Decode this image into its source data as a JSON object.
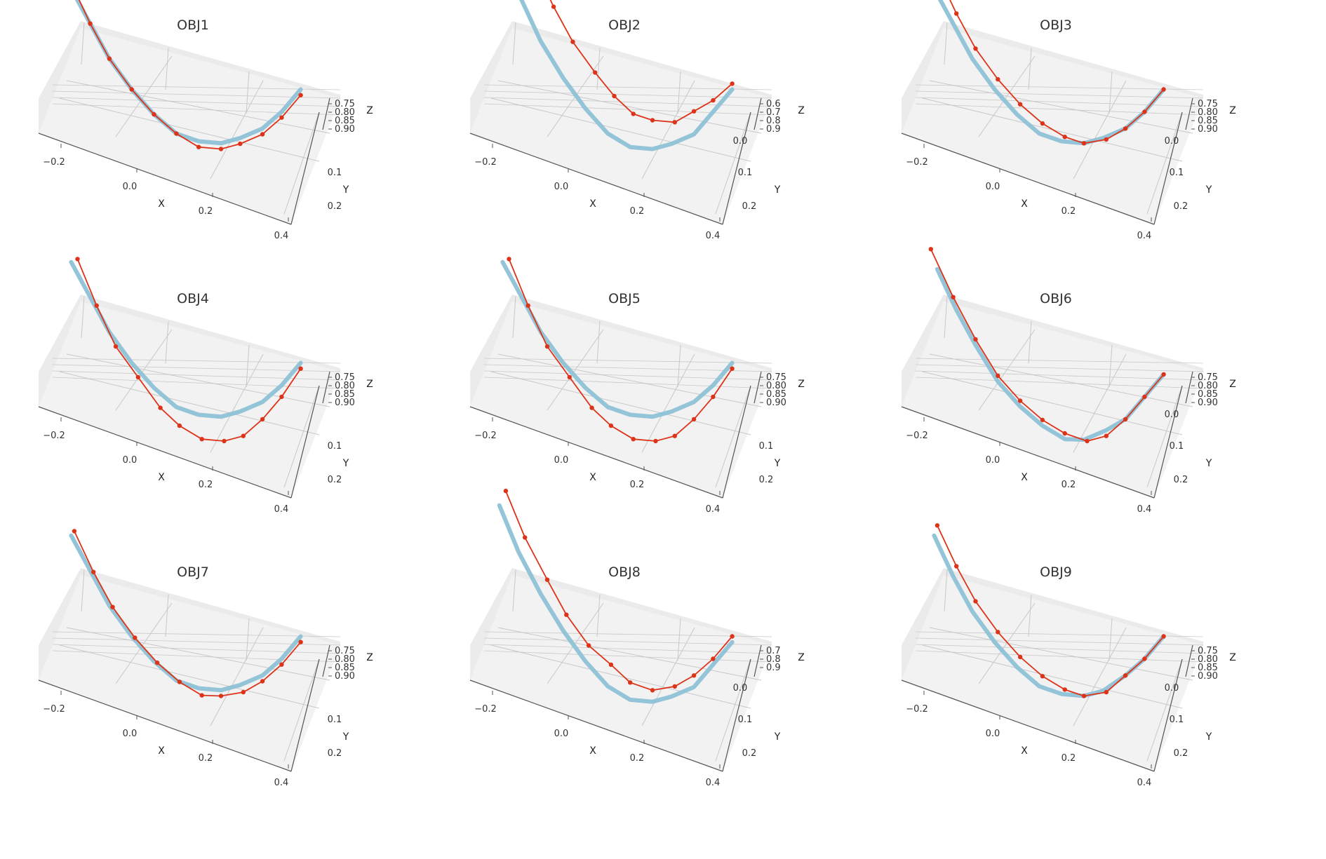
{
  "figure": {
    "colors": {
      "background": "#ffffff",
      "pane_floor": "#f2f2f2",
      "pane_wall": "#ebebeb",
      "grid": "#c8c8c8",
      "axis_line": "#555555",
      "predicted_line": "#8ec1d6",
      "measured_line": "#dd3318"
    },
    "layout": {
      "rows": 3,
      "cols": 3
    }
  },
  "chart_data": [
    {
      "type": "line3d",
      "title": "OBJ1",
      "xlabel": "X",
      "ylabel": "Y",
      "zlabel": "Z",
      "xticks": [
        "−0.2",
        "0.0",
        "0.2",
        "0.4"
      ],
      "yticks": [
        "0.1",
        "0.2"
      ],
      "zticks": [
        "0.75",
        "0.80",
        "0.85",
        "0.90"
      ],
      "view": "elevated-oblique",
      "grid": true,
      "series": [
        {
          "style": "thick-line",
          "color": "#8ec1d6",
          "x": [
            -0.27,
            -0.21,
            -0.15,
            -0.08,
            -0.01,
            0.06,
            0.13,
            0.2,
            0.26,
            0.33,
            0.39,
            0.45
          ],
          "y": [
            0.2,
            0.18,
            0.16,
            0.14,
            0.12,
            0.1,
            0.08,
            0.06,
            0.04,
            0.02,
            0.0,
            -0.02
          ],
          "z": [
            0.73,
            0.78,
            0.83,
            0.87,
            0.9,
            0.92,
            0.92,
            0.91,
            0.89,
            0.86,
            0.82,
            0.77
          ]
        },
        {
          "style": "line-markers",
          "color": "#dd3318",
          "x": [
            -0.27,
            -0.21,
            -0.15,
            -0.08,
            -0.01,
            0.06,
            0.13,
            0.2,
            0.26,
            0.33,
            0.39,
            0.45
          ],
          "y": [
            0.2,
            0.18,
            0.16,
            0.14,
            0.12,
            0.1,
            0.08,
            0.06,
            0.04,
            0.02,
            0.0,
            -0.02
          ],
          "z": [
            0.72,
            0.78,
            0.83,
            0.87,
            0.9,
            0.92,
            0.93,
            0.92,
            0.9,
            0.87,
            0.83,
            0.78
          ]
        }
      ]
    },
    {
      "type": "line3d",
      "title": "OBJ2",
      "xlabel": "X",
      "ylabel": "Y",
      "zlabel": "Z",
      "xticks": [
        "−0.2",
        "0.0",
        "0.2",
        "0.4"
      ],
      "yticks": [
        "0.0",
        "0.1",
        "0.2"
      ],
      "zticks": [
        "0.6",
        "0.7",
        "0.8",
        "0.9"
      ],
      "view": "elevated-oblique",
      "grid": true,
      "series": [
        {
          "style": "thick-line",
          "color": "#8ec1d6",
          "x": [
            -0.28,
            -0.22,
            -0.15,
            -0.08,
            -0.01,
            0.06,
            0.13,
            0.2,
            0.26,
            0.33,
            0.39,
            0.45
          ],
          "y": [
            0.2,
            0.18,
            0.16,
            0.14,
            0.12,
            0.1,
            0.08,
            0.06,
            0.04,
            0.02,
            0.0,
            -0.02
          ],
          "z": [
            0.66,
            0.73,
            0.8,
            0.85,
            0.89,
            0.92,
            0.93,
            0.92,
            0.9,
            0.87,
            0.82,
            0.77
          ]
        },
        {
          "style": "line-markers",
          "color": "#dd3318",
          "x": [
            -0.23,
            -0.17,
            -0.11,
            -0.05,
            0.02,
            0.08,
            0.14,
            0.2,
            0.27,
            0.33,
            0.39,
            0.45
          ],
          "y": [
            0.2,
            0.18,
            0.16,
            0.14,
            0.12,
            0.1,
            0.08,
            0.06,
            0.04,
            0.02,
            0.0,
            -0.02
          ],
          "z": [
            0.6,
            0.67,
            0.73,
            0.78,
            0.82,
            0.85,
            0.87,
            0.87,
            0.86,
            0.83,
            0.8,
            0.76
          ]
        }
      ]
    },
    {
      "type": "line3d",
      "title": "OBJ3",
      "xlabel": "X",
      "ylabel": "Y",
      "zlabel": "Z",
      "xticks": [
        "−0.2",
        "0.0",
        "0.2",
        "0.4"
      ],
      "yticks": [
        "0.0",
        "0.1",
        "0.2"
      ],
      "zticks": [
        "0.75",
        "0.80",
        "0.85",
        "0.90"
      ],
      "view": "elevated-oblique",
      "grid": true,
      "series": [
        {
          "style": "thick-line",
          "color": "#8ec1d6",
          "x": [
            -0.27,
            -0.21,
            -0.15,
            -0.08,
            -0.01,
            0.06,
            0.13,
            0.2,
            0.26,
            0.33,
            0.39,
            0.45
          ],
          "y": [
            0.2,
            0.18,
            0.16,
            0.14,
            0.12,
            0.1,
            0.08,
            0.06,
            0.04,
            0.02,
            0.0,
            -0.02
          ],
          "z": [
            0.73,
            0.78,
            0.83,
            0.87,
            0.9,
            0.92,
            0.92,
            0.91,
            0.89,
            0.86,
            0.82,
            0.77
          ]
        },
        {
          "style": "line-markers",
          "color": "#dd3318",
          "x": [
            -0.26,
            -0.2,
            -0.14,
            -0.07,
            0.0,
            0.07,
            0.14,
            0.2,
            0.27,
            0.33,
            0.39,
            0.45
          ],
          "y": [
            0.2,
            0.18,
            0.16,
            0.14,
            0.12,
            0.1,
            0.08,
            0.06,
            0.04,
            0.02,
            0.0,
            -0.02
          ],
          "z": [
            0.7,
            0.76,
            0.81,
            0.85,
            0.88,
            0.9,
            0.91,
            0.91,
            0.89,
            0.86,
            0.82,
            0.77
          ]
        }
      ]
    },
    {
      "type": "line3d",
      "title": "OBJ4",
      "xlabel": "X",
      "ylabel": "Y",
      "zlabel": "Z",
      "xticks": [
        "−0.2",
        "0.0",
        "0.2",
        "0.4"
      ],
      "yticks": [
        "0.1",
        "0.2"
      ],
      "zticks": [
        "0.75",
        "0.80",
        "0.85",
        "0.90"
      ],
      "view": "elevated-oblique",
      "grid": true,
      "series": [
        {
          "style": "thick-line",
          "color": "#8ec1d6",
          "x": [
            -0.27,
            -0.21,
            -0.15,
            -0.08,
            -0.01,
            0.06,
            0.13,
            0.2,
            0.26,
            0.33,
            0.39,
            0.45
          ],
          "y": [
            0.2,
            0.18,
            0.16,
            0.14,
            0.12,
            0.1,
            0.08,
            0.06,
            0.04,
            0.02,
            0.0,
            -0.02
          ],
          "z": [
            0.73,
            0.78,
            0.83,
            0.87,
            0.9,
            0.92,
            0.92,
            0.91,
            0.89,
            0.86,
            0.82,
            0.77
          ]
        },
        {
          "style": "line-markers",
          "color": "#dd3318",
          "x": [
            -0.25,
            -0.19,
            -0.13,
            -0.06,
            0.01,
            0.07,
            0.14,
            0.21,
            0.27,
            0.33,
            0.39,
            0.45
          ],
          "y": [
            0.2,
            0.18,
            0.16,
            0.14,
            0.12,
            0.1,
            0.08,
            0.06,
            0.04,
            0.02,
            0.0,
            -0.02
          ],
          "z": [
            0.72,
            0.79,
            0.85,
            0.89,
            0.93,
            0.95,
            0.96,
            0.95,
            0.93,
            0.89,
            0.84,
            0.78
          ]
        }
      ]
    },
    {
      "type": "line3d",
      "title": "OBJ5",
      "xlabel": "X",
      "ylabel": "Y",
      "zlabel": "Z",
      "xticks": [
        "−0.2",
        "0.0",
        "0.2",
        "0.4"
      ],
      "yticks": [
        "0.1",
        "0.2"
      ],
      "zticks": [
        "0.75",
        "0.80",
        "0.85",
        "0.90"
      ],
      "view": "elevated-oblique",
      "grid": true,
      "series": [
        {
          "style": "thick-line",
          "color": "#8ec1d6",
          "x": [
            -0.27,
            -0.21,
            -0.15,
            -0.08,
            -0.01,
            0.06,
            0.13,
            0.2,
            0.26,
            0.33,
            0.39,
            0.45
          ],
          "y": [
            0.2,
            0.18,
            0.16,
            0.14,
            0.12,
            0.1,
            0.08,
            0.06,
            0.04,
            0.02,
            0.0,
            -0.02
          ],
          "z": [
            0.73,
            0.78,
            0.83,
            0.87,
            0.9,
            0.92,
            0.92,
            0.91,
            0.89,
            0.86,
            0.82,
            0.77
          ]
        },
        {
          "style": "line-markers",
          "color": "#dd3318",
          "x": [
            -0.25,
            -0.19,
            -0.13,
            -0.06,
            0.01,
            0.07,
            0.14,
            0.21,
            0.27,
            0.33,
            0.39,
            0.45
          ],
          "y": [
            0.2,
            0.18,
            0.16,
            0.14,
            0.12,
            0.1,
            0.08,
            0.06,
            0.04,
            0.02,
            0.0,
            -0.02
          ],
          "z": [
            0.72,
            0.79,
            0.85,
            0.89,
            0.93,
            0.95,
            0.96,
            0.95,
            0.93,
            0.89,
            0.84,
            0.78
          ]
        }
      ]
    },
    {
      "type": "line3d",
      "title": "OBJ6",
      "xlabel": "X",
      "ylabel": "Y",
      "zlabel": "Z",
      "xticks": [
        "−0.2",
        "0.0",
        "0.2",
        "0.4"
      ],
      "yticks": [
        "0.0",
        "0.1",
        "0.2"
      ],
      "zticks": [
        "0.75",
        "0.80",
        "0.85",
        "0.90"
      ],
      "view": "elevated-oblique",
      "grid": true,
      "series": [
        {
          "style": "thick-line",
          "color": "#8ec1d6",
          "x": [
            -0.26,
            -0.2,
            -0.14,
            -0.07,
            0.0,
            0.07,
            0.14,
            0.2,
            0.27,
            0.33,
            0.39,
            0.45
          ],
          "y": [
            0.2,
            0.18,
            0.16,
            0.14,
            0.12,
            0.1,
            0.08,
            0.06,
            0.04,
            0.02,
            0.0,
            -0.02
          ],
          "z": [
            0.74,
            0.8,
            0.85,
            0.9,
            0.93,
            0.95,
            0.96,
            0.95,
            0.92,
            0.89,
            0.84,
            0.79
          ]
        },
        {
          "style": "line-markers",
          "color": "#dd3318",
          "x": [
            -0.28,
            -0.21,
            -0.14,
            -0.07,
            0.0,
            0.07,
            0.14,
            0.21,
            0.27,
            0.33,
            0.39,
            0.45
          ],
          "y": [
            0.2,
            0.18,
            0.16,
            0.14,
            0.12,
            0.1,
            0.08,
            0.06,
            0.04,
            0.02,
            0.0,
            -0.02
          ],
          "z": [
            0.71,
            0.78,
            0.84,
            0.89,
            0.92,
            0.94,
            0.95,
            0.95,
            0.93,
            0.89,
            0.84,
            0.79
          ]
        }
      ]
    },
    {
      "type": "line3d",
      "title": "OBJ7",
      "xlabel": "X",
      "ylabel": "Y",
      "zlabel": "Z",
      "xticks": [
        "−0.2",
        "0.0",
        "0.2",
        "0.4"
      ],
      "yticks": [
        "0.1",
        "0.2"
      ],
      "zticks": [
        "0.75",
        "0.80",
        "0.85",
        "0.90"
      ],
      "view": "elevated-oblique",
      "grid": true,
      "series": [
        {
          "style": "thick-line",
          "color": "#8ec1d6",
          "x": [
            -0.27,
            -0.21,
            -0.15,
            -0.08,
            -0.01,
            0.06,
            0.13,
            0.2,
            0.26,
            0.33,
            0.39,
            0.45
          ],
          "y": [
            0.2,
            0.18,
            0.16,
            0.14,
            0.12,
            0.1,
            0.08,
            0.06,
            0.04,
            0.02,
            0.0,
            -0.02
          ],
          "z": [
            0.73,
            0.78,
            0.83,
            0.87,
            0.9,
            0.92,
            0.92,
            0.91,
            0.89,
            0.86,
            0.82,
            0.77
          ]
        },
        {
          "style": "line-markers",
          "color": "#dd3318",
          "x": [
            -0.26,
            -0.2,
            -0.14,
            -0.07,
            0.0,
            0.07,
            0.14,
            0.2,
            0.27,
            0.33,
            0.39,
            0.45
          ],
          "y": [
            0.2,
            0.18,
            0.16,
            0.14,
            0.12,
            0.1,
            0.08,
            0.06,
            0.04,
            0.02,
            0.0,
            -0.02
          ],
          "z": [
            0.72,
            0.78,
            0.83,
            0.87,
            0.9,
            0.92,
            0.93,
            0.92,
            0.9,
            0.87,
            0.83,
            0.78
          ]
        }
      ]
    },
    {
      "type": "line3d",
      "title": "OBJ8",
      "xlabel": "X",
      "ylabel": "Y",
      "zlabel": "Z",
      "xticks": [
        "−0.2",
        "0.0",
        "0.2",
        "0.4"
      ],
      "yticks": [
        "0.0",
        "0.1",
        "0.2"
      ],
      "zticks": [
        "0.7",
        "0.8",
        "0.9"
      ],
      "view": "elevated-oblique",
      "grid": true,
      "series": [
        {
          "style": "thick-line",
          "color": "#8ec1d6",
          "x": [
            -0.28,
            -0.22,
            -0.15,
            -0.08,
            -0.01,
            0.06,
            0.13,
            0.2,
            0.26,
            0.33,
            0.39,
            0.45
          ],
          "y": [
            0.2,
            0.18,
            0.16,
            0.14,
            0.12,
            0.1,
            0.08,
            0.06,
            0.04,
            0.02,
            0.0,
            -0.02
          ],
          "z": [
            0.68,
            0.75,
            0.81,
            0.86,
            0.9,
            0.93,
            0.94,
            0.93,
            0.91,
            0.88,
            0.83,
            0.78
          ]
        },
        {
          "style": "line-markers",
          "color": "#dd3318",
          "x": [
            -0.26,
            -0.2,
            -0.13,
            -0.07,
            0.0,
            0.07,
            0.13,
            0.2,
            0.27,
            0.33,
            0.39,
            0.45
          ],
          "y": [
            0.2,
            0.18,
            0.16,
            0.14,
            0.12,
            0.1,
            0.08,
            0.06,
            0.04,
            0.02,
            0.0,
            -0.02
          ],
          "z": [
            0.65,
            0.72,
            0.78,
            0.83,
            0.87,
            0.89,
            0.91,
            0.91,
            0.89,
            0.86,
            0.82,
            0.77
          ]
        }
      ]
    },
    {
      "type": "line3d",
      "title": "OBJ9",
      "xlabel": "X",
      "ylabel": "Y",
      "zlabel": "Z",
      "xticks": [
        "−0.2",
        "0.0",
        "0.2",
        "0.4"
      ],
      "yticks": [
        "0.0",
        "0.1",
        "0.2"
      ],
      "zticks": [
        "0.75",
        "0.80",
        "0.85",
        "0.90"
      ],
      "view": "elevated-oblique",
      "grid": true,
      "series": [
        {
          "style": "thick-line",
          "color": "#8ec1d6",
          "x": [
            -0.27,
            -0.21,
            -0.15,
            -0.08,
            -0.01,
            0.06,
            0.13,
            0.2,
            0.26,
            0.33,
            0.39,
            0.45
          ],
          "y": [
            0.2,
            0.18,
            0.16,
            0.14,
            0.12,
            0.1,
            0.08,
            0.06,
            0.04,
            0.02,
            0.0,
            -0.02
          ],
          "z": [
            0.73,
            0.79,
            0.84,
            0.88,
            0.91,
            0.93,
            0.93,
            0.92,
            0.9,
            0.86,
            0.82,
            0.77
          ]
        },
        {
          "style": "line-markers",
          "color": "#dd3318",
          "x": [
            -0.26,
            -0.2,
            -0.14,
            -0.07,
            0.0,
            0.07,
            0.14,
            0.2,
            0.27,
            0.33,
            0.39,
            0.45
          ],
          "y": [
            0.2,
            0.18,
            0.16,
            0.14,
            0.12,
            0.1,
            0.08,
            0.06,
            0.04,
            0.02,
            0.0,
            -0.02
          ],
          "z": [
            0.71,
            0.77,
            0.82,
            0.86,
            0.89,
            0.91,
            0.92,
            0.92,
            0.9,
            0.86,
            0.82,
            0.77
          ]
        }
      ]
    }
  ]
}
